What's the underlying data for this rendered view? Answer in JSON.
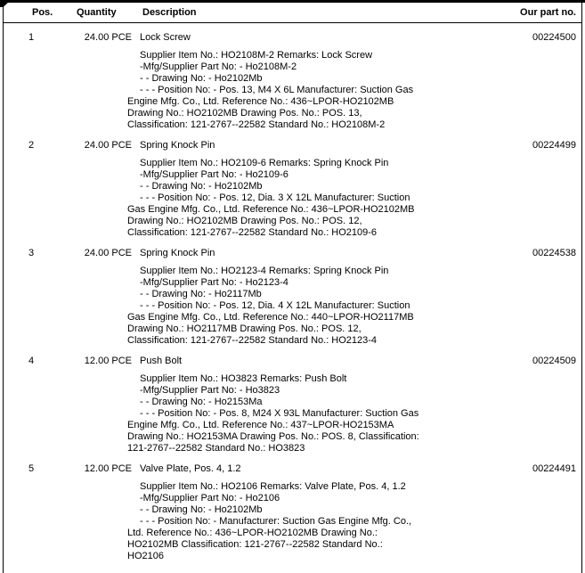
{
  "header": {
    "pos": "Pos.",
    "quantity": "Quantity",
    "description": "Description",
    "part_no": "Our part no."
  },
  "rows": [
    {
      "pos": "1",
      "quantity": "24.00 PCE",
      "title": "Lock Screw",
      "part_no": "00224500",
      "details": [
        "Supplier Item No.: HO2108M-2 Remarks: Lock Screw",
        "-Mfg/Supplier Part No: - Ho2108M-2",
        "- - Drawing No: - Ho2102Mb",
        "- - - Position No: - Pos. 13, M4 X 6L Manufacturer: Suction Gas Engine Mfg. Co., Ltd. Reference No.: 436~LPOR-HO2102MB Drawing No.: HO2102MB Drawing Pos. No.: POS. 13, Classification: 121-2767--22582 Standard No.: HO2108M-2"
      ]
    },
    {
      "pos": "2",
      "quantity": "24.00 PCE",
      "title": "Spring Knock Pin",
      "part_no": "00224499",
      "details": [
        "Supplier Item No.: HO2109-6 Remarks: Spring Knock Pin",
        "-Mfg/Supplier Part No: - Ho2109-6",
        "- - Drawing No: - Ho2102Mb",
        "- - - Position No: - Pos. 12, Dia. 3 X 12L Manufacturer: Suction Gas Engine Mfg. Co., Ltd. Reference No.: 436~LPOR-HO2102MB Drawing No.: HO2102MB Drawing Pos. No.: POS. 12, Classification: 121-2767--22582 Standard No.: HO2109-6"
      ]
    },
    {
      "pos": "3",
      "quantity": "24.00 PCE",
      "title": "Spring Knock Pin",
      "part_no": "00224538",
      "details": [
        "Supplier Item No.: HO2123-4 Remarks: Spring Knock Pin",
        "-Mfg/Supplier Part No: - Ho2123-4",
        "- - Drawing No: - Ho2117Mb",
        "- - - Position No: - Pos. 12, Dia. 4 X 12L Manufacturer: Suction Gas Engine Mfg. Co., Ltd. Reference No.: 440~LPOR-HO2117MB Drawing No.: HO2117MB Drawing Pos. No.: POS. 12, Classification: 121-2767--22582 Standard No.: HO2123-4"
      ]
    },
    {
      "pos": "4",
      "quantity": "12.00 PCE",
      "title": "Push Bolt",
      "part_no": "00224509",
      "details": [
        "Supplier Item No.: HO3823 Remarks: Push Bolt",
        "-Mfg/Supplier Part No: - Ho3823",
        "- - Drawing No: - Ho2153Ma",
        "- - - Position No: - Pos. 8, M24 X 93L Manufacturer: Suction Gas Engine Mfg. Co., Ltd. Reference No.: 437~LPOR-HO2153MA Drawing No.: HO2153MA Drawing Pos. No.: POS. 8, Classification: 121-2767--22582 Standard No.: HO3823"
      ]
    },
    {
      "pos": "5",
      "quantity": "12.00 PCE",
      "title": "Valve Plate, Pos. 4, 1.2",
      "part_no": "00224491",
      "details": [
        "Supplier Item No.: HO2106 Remarks: Valve Plate, Pos. 4, 1.2",
        "-Mfg/Supplier Part No: - Ho2106",
        "- - Drawing No: - Ho2102Mb",
        "- - - Position No: - Manufacturer: Suction Gas Engine Mfg. Co., Ltd. Reference No.: 436~LPOR-HO2102MB Drawing No.: HO2102MB Classification: 121-2767--22582 Standard No.: HO2106"
      ]
    }
  ],
  "colors": {
    "text": "#000000",
    "border": "#000000",
    "background": "#ffffff"
  }
}
